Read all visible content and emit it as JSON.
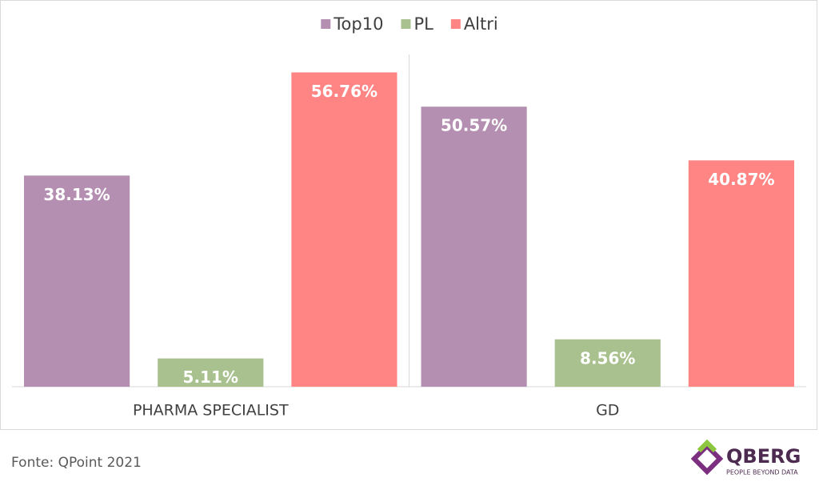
{
  "chart_data": {
    "type": "bar",
    "categories": [
      "PHARMA SPECIALIST",
      "GD"
    ],
    "series": [
      {
        "name": "Top10",
        "color": "#b48fb1",
        "values": [
          38.13,
          50.57
        ],
        "value_labels": [
          "38.13%",
          "50.57%"
        ]
      },
      {
        "name": "PL",
        "color": "#a9c18e",
        "values": [
          5.11,
          8.56
        ],
        "value_labels": [
          "5.11%",
          "8.56%"
        ]
      },
      {
        "name": "Altri",
        "color": "#ff8585",
        "values": [
          56.76,
          40.87
        ],
        "value_labels": [
          "56.76%",
          "40.87%"
        ]
      }
    ],
    "ylim": [
      0,
      60
    ],
    "legend": "top"
  },
  "footer": {
    "source": "Fonte: QPoint 2021",
    "logo": "QBERG",
    "tagline": "PEOPLE BEYOND DATA"
  }
}
